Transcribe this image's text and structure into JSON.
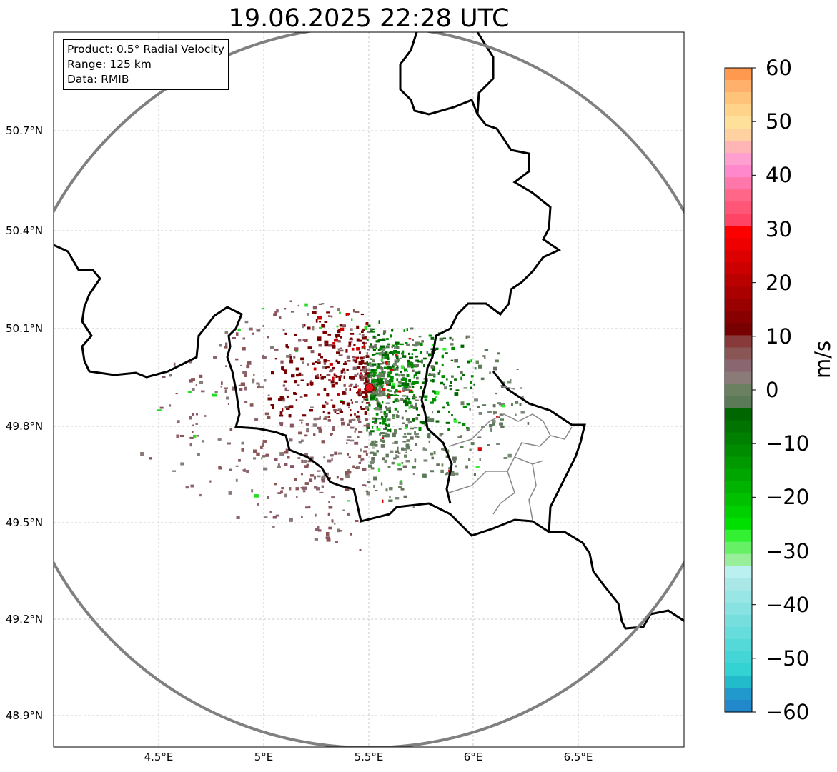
{
  "title": "19.06.2025 22:28 UTC",
  "info_box": {
    "product": "Product: 0.5° Radial Velocity",
    "range": "Range: 125 km",
    "source": "Data: RMIB"
  },
  "lat_ticks": [
    "50.7°N",
    "50.4°N",
    "50.1°N",
    "49.8°N",
    "49.5°N",
    "49.2°N",
    "48.9°N"
  ],
  "lon_ticks": [
    "4.5°E",
    "5°E",
    "5.5°E",
    "6°E",
    "6.5°E"
  ],
  "colorbar": {
    "unit": "m/s",
    "ticks": [
      "60",
      "50",
      "40",
      "30",
      "20",
      "10",
      "0",
      "−10",
      "−20",
      "−30",
      "−40",
      "−50",
      "−60"
    ],
    "colors": [
      "#ff9950",
      "#ffb06a",
      "#ffc37a",
      "#ffd48a",
      "#ffe09a",
      "#ffd0a0",
      "#ffb5b5",
      "#ff9fcf",
      "#ff88cc",
      "#ff77aa",
      "#ff6688",
      "#ff5577",
      "#ff4466",
      "#ff0000",
      "#ee0000",
      "#dd0000",
      "#cc0000",
      "#bb0000",
      "#aa0000",
      "#990000",
      "#880000",
      "#770000",
      "#883a3a",
      "#8a5555",
      "#8a6670",
      "#8a7a78",
      "#6a8060",
      "#5a7a58",
      "#006600",
      "#007300",
      "#008000",
      "#008c00",
      "#009900",
      "#00a600",
      "#00b300",
      "#00c000",
      "#00d000",
      "#00e000",
      "#33f033",
      "#66f066",
      "#99ee99",
      "#bbf0f0",
      "#aae8e8",
      "#99e6e6",
      "#88e2e2",
      "#77dede",
      "#66dcdc",
      "#55d8d8",
      "#44d6d6",
      "#33d3d3",
      "#22bbcc",
      "#2299cc",
      "#2288cc"
    ]
  },
  "radar_site": {
    "lon": 5.5,
    "lat": 49.915
  }
}
